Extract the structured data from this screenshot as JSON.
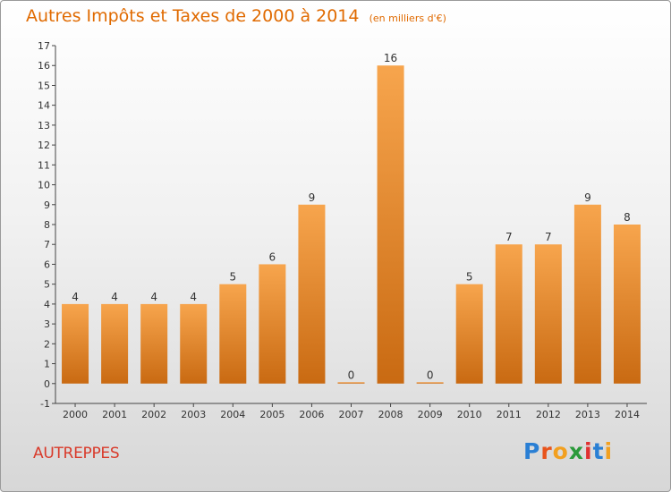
{
  "title": "Autres Impôts et Taxes de 2000 à 2014",
  "subtitle": "(en milliers d'€)",
  "commune": "AUTREPPES",
  "brand": {
    "letters": [
      "P",
      "r",
      "o",
      "x",
      "i",
      "t",
      "i"
    ],
    "colors": [
      "#2a7fd4",
      "#e8541c",
      "#f2a020",
      "#2a9a3a",
      "#e03030",
      "#2a7fd4",
      "#f2a020"
    ]
  },
  "colors": {
    "bar_light": "#f7a54d",
    "bar_dark": "#c96a12",
    "title": "#e06a00",
    "axis": "#444444"
  },
  "chart_data": {
    "type": "bar",
    "title": "Autres Impôts et Taxes de 2000 à 2014",
    "subtitle": "(en milliers d'€)",
    "xlabel": "",
    "ylabel": "",
    "ylim": [
      -1,
      17
    ],
    "yticks": [
      "-1",
      "0",
      "1",
      "2",
      "3",
      "4",
      "5",
      "6",
      "7",
      "8",
      "9",
      "10",
      "11",
      "12",
      "13",
      "14",
      "15",
      "16",
      "17"
    ],
    "categories": [
      "2000",
      "2001",
      "2002",
      "2003",
      "2004",
      "2005",
      "2006",
      "2007",
      "2008",
      "2009",
      "2010",
      "2011",
      "2012",
      "2013",
      "2014"
    ],
    "values": [
      4,
      4,
      4,
      4,
      5,
      6,
      9,
      0,
      16,
      0,
      5,
      7,
      7,
      9,
      8
    ],
    "grid": false,
    "legend": "none"
  }
}
